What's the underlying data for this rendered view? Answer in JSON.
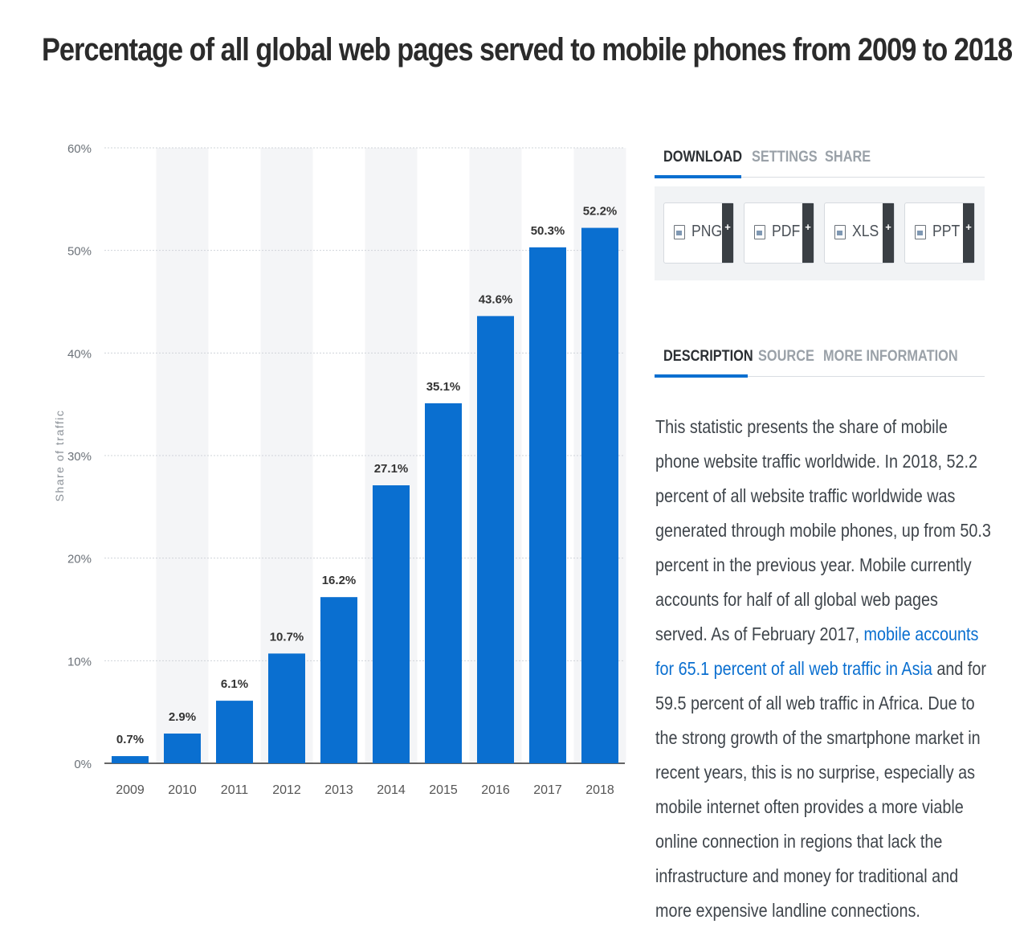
{
  "title": "Percentage of all global web pages served to mobile phones from 2009 to 2018",
  "tabs_top": [
    {
      "label": "DOWNLOAD",
      "active": true
    },
    {
      "label": "SETTINGS",
      "active": false
    },
    {
      "label": "SHARE",
      "active": false
    }
  ],
  "downloads": [
    {
      "label": "PNG",
      "icon": "png-file-icon",
      "action": "+"
    },
    {
      "label": "PDF",
      "icon": "pdf-file-icon",
      "action": "+"
    },
    {
      "label": "XLS",
      "icon": "xls-file-icon",
      "action": "+"
    },
    {
      "label": "PPT",
      "icon": "ppt-file-icon",
      "action": "+"
    }
  ],
  "tabs_bottom": [
    {
      "label": "DESCRIPTION",
      "active": true
    },
    {
      "label": "SOURCE",
      "active": false
    },
    {
      "label": "MORE INFORMATION",
      "active": false
    }
  ],
  "description": {
    "before_link": "This statistic presents the share of mobile phone website traffic worldwide. In 2018, 52.2 percent of all website traffic worldwide was generated through mobile phones, up from 50.3 percent in the previous year. Mobile currently accounts for half of all global web pages served. As of February 2017, ",
    "link": "mobile accounts for 65.1 percent of all web traffic in Asia",
    "after_link": " and for 59.5 percent of all web traffic in Africa. Due to the strong growth of the smartphone market in recent years, this is no surprise, especially as mobile internet often provides a more viable online connection in regions that lack the infrastructure and money for traditional and more expensive landline connections."
  },
  "colors": {
    "bar": "#0a6fd0",
    "accent": "#0a6fd0",
    "stripe": "#f4f5f7",
    "grid": "#cfd4d9"
  },
  "chart_data": {
    "type": "bar",
    "title": "Percentage of all global web pages served to mobile phones from 2009 to 2018",
    "xlabel": "",
    "ylabel": "Share of traffic",
    "categories": [
      "2009",
      "2010",
      "2011",
      "2012",
      "2013",
      "2014",
      "2015",
      "2016",
      "2017",
      "2018"
    ],
    "values": [
      0.7,
      2.9,
      6.1,
      10.7,
      16.2,
      27.1,
      35.1,
      43.6,
      50.3,
      52.2
    ],
    "data_labels": [
      "0.7%",
      "2.9%",
      "6.1%",
      "10.7%",
      "16.2%",
      "27.1%",
      "35.1%",
      "43.6%",
      "50.3%",
      "52.2%"
    ],
    "ylim": [
      0,
      60
    ],
    "yticks": [
      0,
      10,
      20,
      30,
      40,
      50,
      60
    ],
    "ytick_labels": [
      "0%",
      "10%",
      "20%",
      "30%",
      "40%",
      "50%",
      "60%"
    ],
    "grid": true,
    "legend": "none"
  }
}
